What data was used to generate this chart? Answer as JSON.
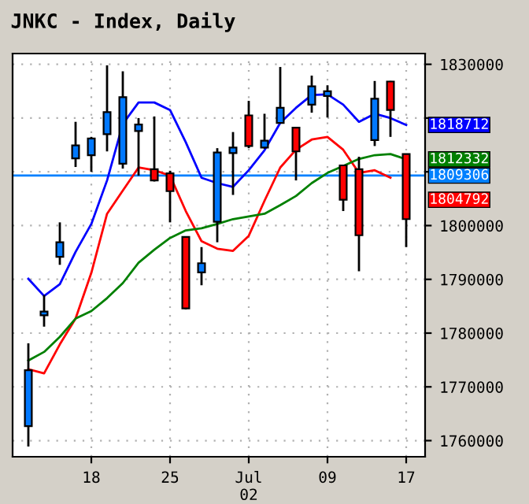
{
  "chart_data": {
    "type": "candlestick",
    "title": "JNKC - Index, Daily",
    "categories": [
      null,
      null,
      null,
      null,
      "18",
      null,
      null,
      null,
      null,
      "25",
      null,
      null,
      null,
      null,
      "Jul\n02",
      null,
      null,
      null,
      null,
      "09",
      null,
      null,
      null,
      null,
      "17"
    ],
    "ohlc": [
      [
        1762700,
        1778100,
        1758900,
        1773100
      ],
      [
        1783300,
        1787100,
        1781200,
        1784000
      ],
      [
        1794200,
        1800600,
        1792700,
        1796900
      ],
      [
        1812500,
        1819300,
        1810900,
        1814900
      ],
      [
        1813100,
        1816500,
        1810000,
        1816200
      ],
      [
        1817000,
        1829800,
        1813800,
        1821100
      ],
      [
        1811500,
        1828700,
        1810600,
        1823900
      ],
      [
        1817600,
        1820000,
        1809300,
        1818800
      ],
      [
        1810500,
        1820300,
        1808200,
        1808400
      ],
      [
        1809700,
        1810200,
        1800600,
        1806400
      ],
      [
        1797900,
        1798000,
        1784400,
        1784600
      ],
      [
        1791300,
        1796000,
        1788900,
        1793000
      ],
      [
        1800700,
        1814400,
        1796900,
        1813600
      ],
      [
        1813500,
        1817400,
        1805700,
        1814500
      ],
      [
        1820500,
        1823200,
        1814400,
        1814800
      ],
      [
        1814500,
        1820800,
        1814300,
        1815800
      ],
      [
        1819100,
        1829500,
        1819000,
        1821900
      ],
      [
        1818200,
        1818300,
        1808400,
        1813800
      ],
      [
        1822500,
        1827900,
        1821000,
        1825900
      ],
      [
        1824100,
        1826100,
        1820100,
        1825000
      ],
      [
        1811200,
        1811300,
        1802700,
        1804800
      ],
      [
        1810500,
        1812800,
        1791500,
        1798200
      ],
      [
        1815900,
        1826900,
        1814800,
        1823600
      ],
      [
        1826800,
        1826900,
        1816500,
        1821500
      ],
      [
        1813300,
        1813400,
        1796000,
        1801200
      ]
    ],
    "colors": [
      "#0078ff",
      "#0078ff",
      "#0078ff",
      "#0078ff",
      "#0078ff",
      "#0078ff",
      "#0078ff",
      "#0078ff",
      "#ff0000",
      "#ff0000",
      "#ff0000",
      "#0078ff",
      "#0078ff",
      "#0078ff",
      "#ff0000",
      "#0078ff",
      "#0078ff",
      "#ff0000",
      "#0078ff",
      "#0078ff",
      "#ff0000",
      "#ff0000",
      "#0078ff",
      "#ff0000",
      "#ff0000"
    ],
    "series": [
      {
        "type": "line",
        "color": "#0000ff",
        "values": [
          1790100,
          1786900,
          1789100,
          1795100,
          1800300,
          1808400,
          1818900,
          1822900,
          1822900,
          1821500,
          1815500,
          1808900,
          1807900,
          1807200,
          1810300,
          1814000,
          1819100,
          1821900,
          1824300,
          1824400,
          1822500,
          1819300,
          1820800,
          1820000,
          1818712
        ]
      },
      {
        "type": "line",
        "color": "#ff0000",
        "values": [
          1773300,
          1772500,
          1777900,
          1782700,
          1791200,
          1802200,
          1806500,
          1810800,
          1810300,
          1809300,
          1802700,
          1797100,
          1795700,
          1795300,
          1798100,
          1804600,
          1810800,
          1814100,
          1816000,
          1816500,
          1814100,
          1809800,
          1810300,
          1808900,
          null
        ]
      },
      {
        "type": "line",
        "color": "#008000",
        "values": [
          1774900,
          1776500,
          1779300,
          1782700,
          1784100,
          1786500,
          1789300,
          1793100,
          1795500,
          1797700,
          1799100,
          1799500,
          1800300,
          1801200,
          1801700,
          1802200,
          1803800,
          1805500,
          1807900,
          1809800,
          1811100,
          1812400,
          1813100,
          1813300,
          1812332
        ]
      }
    ],
    "ref_lines": [
      {
        "axis": "y",
        "value": 1809306,
        "label": "1809306",
        "color": "#0080ff"
      }
    ],
    "annotations": [
      {
        "text": "1818712",
        "x": "17",
        "y": 1818712
      },
      {
        "text": "1804792",
        "x": "17",
        "y": 1804792
      },
      {
        "text": "1812332",
        "x": "17",
        "y": 1812332
      }
    ],
    "ylim": [
      1757000,
      1832000
    ],
    "yticks": [
      1760000,
      1770000,
      1780000,
      1790000,
      1800000,
      {
        "value": 1810000,
        "label": null
      },
      {
        "value": 1820000,
        "label": null
      },
      1830000
    ],
    "grid": true
  }
}
